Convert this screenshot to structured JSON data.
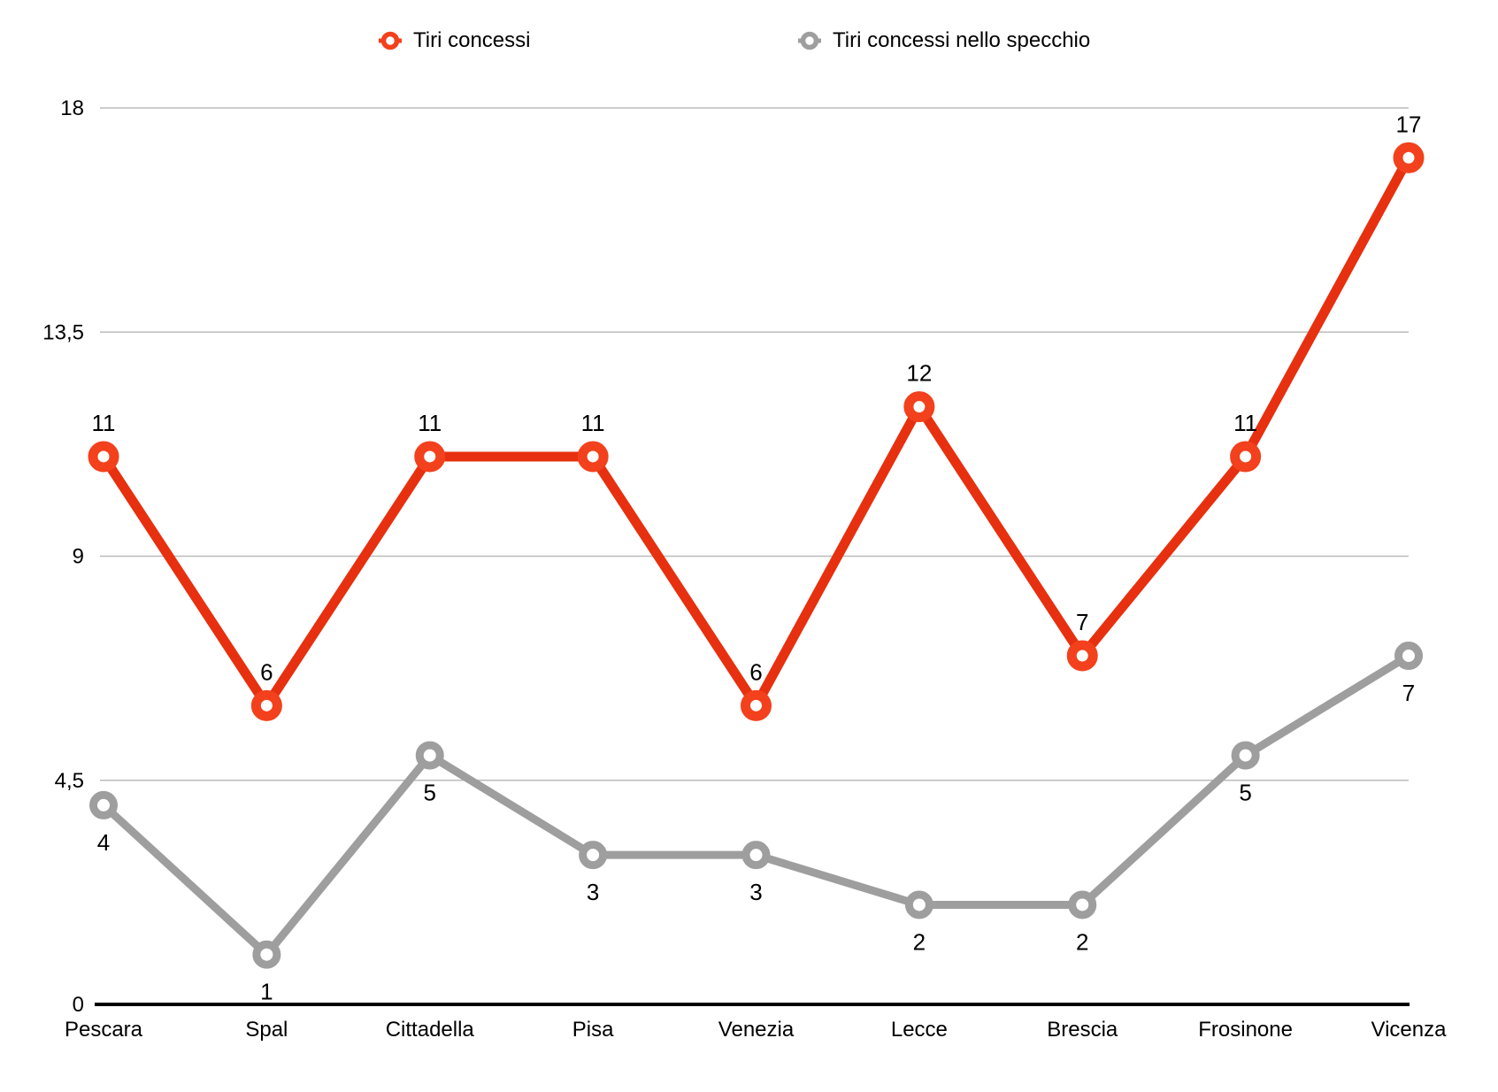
{
  "chart_data": {
    "type": "line",
    "categories": [
      "Pescara",
      "Spal",
      "Cittadella",
      "Pisa",
      "Venezia",
      "Lecce",
      "Brescia",
      "Frosinone",
      "Vicenza"
    ],
    "series": [
      {
        "name": "Tiri concessi",
        "values": [
          11,
          6,
          11,
          11,
          6,
          12,
          7,
          11,
          17
        ],
        "line_color": "#E7300F",
        "marker_color": "#F2411C",
        "label_position": "above"
      },
      {
        "name": "Tiri concessi nello specchio",
        "values": [
          4,
          1,
          5,
          3,
          3,
          2,
          2,
          5,
          7
        ],
        "line_color": "#9E9E9E",
        "marker_color": "#9E9E9E",
        "label_position": "below"
      }
    ],
    "title": "",
    "xlabel": "",
    "ylabel": "",
    "ylim": [
      0,
      18
    ],
    "yticks": {
      "values": [
        0,
        4.5,
        9,
        13.5,
        18
      ],
      "labels": [
        "0",
        "4,5",
        "9",
        "13,5",
        "18"
      ]
    },
    "grid": true,
    "gridline_color": "#BBBBBB",
    "axis_color": "#000000",
    "legend_position": "top",
    "data_label_color": "#000000"
  }
}
